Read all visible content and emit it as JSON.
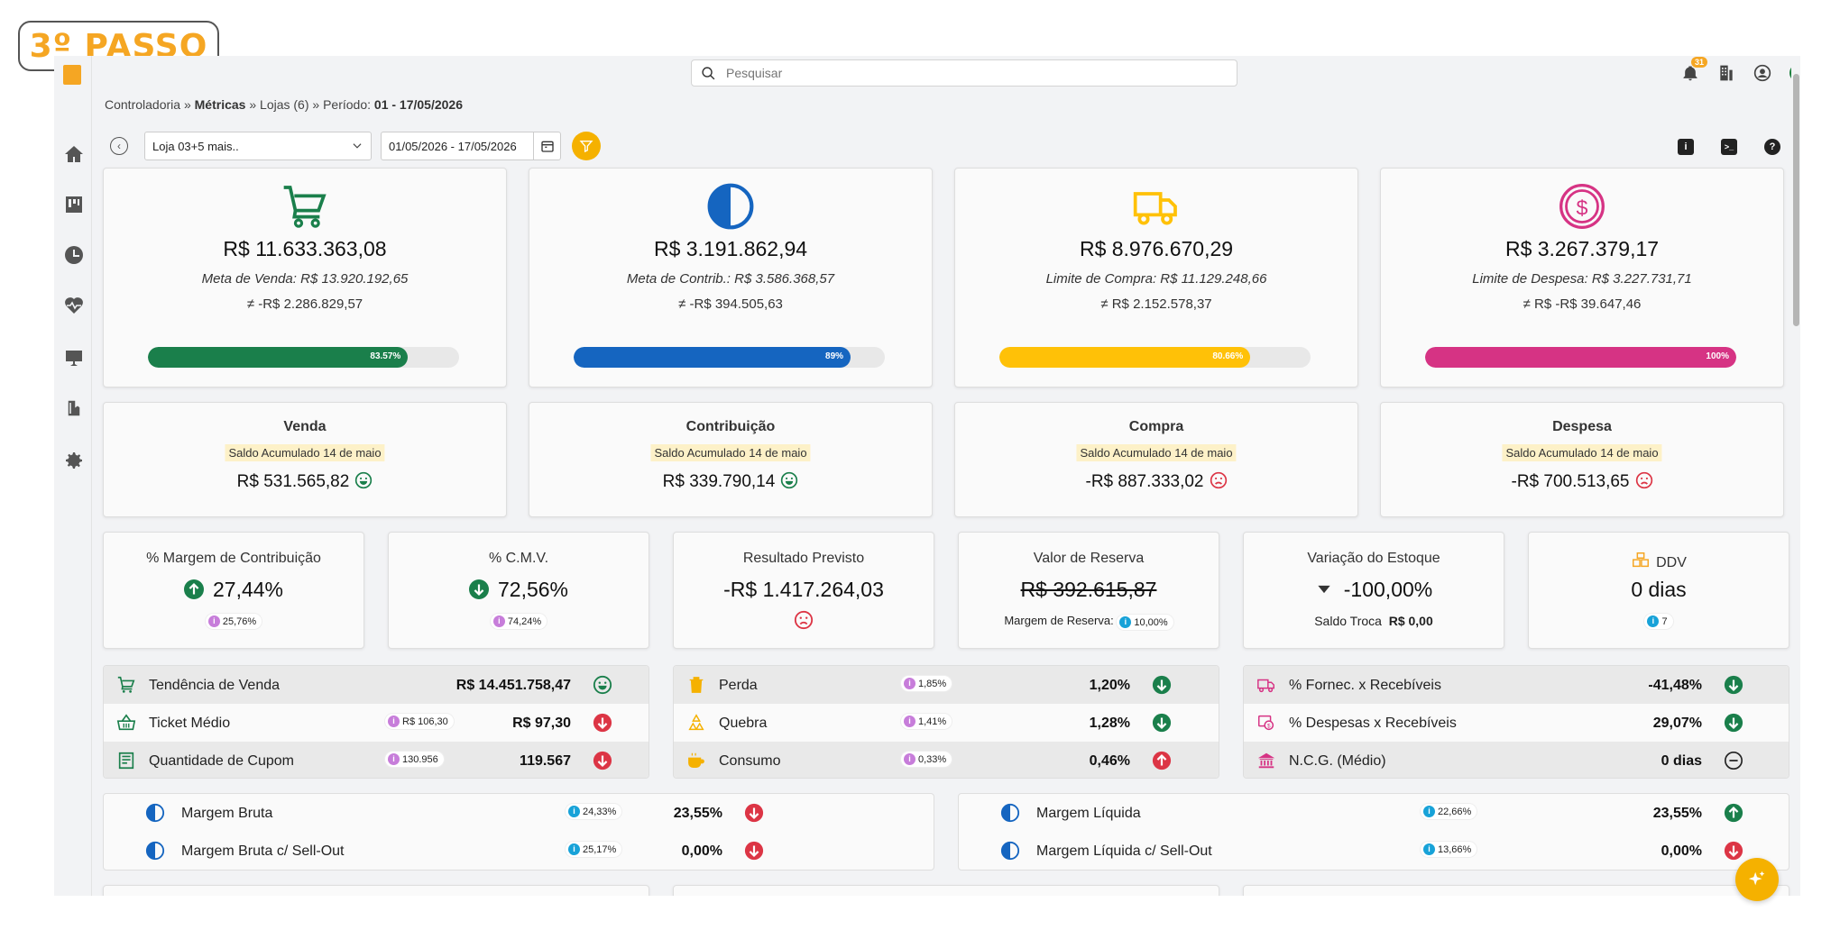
{
  "watermark": {
    "text": "3º PASSO"
  },
  "search": {
    "placeholder": "Pesquisar"
  },
  "notifications": {
    "count": "31"
  },
  "breadcrumb": {
    "part1": "Controladoria",
    "sep": " » ",
    "part2": "Métricas",
    "part3": "Lojas (6)",
    "part4": "Período: ",
    "period": "01 - 17/05/2026"
  },
  "filters": {
    "store": "Loja 03+5 mais..",
    "date_range": "01/05/2026 - 17/05/2026"
  },
  "kpis": [
    {
      "value": "R$ 11.633.363,08",
      "meta": "Meta de Venda: R$ 13.920.192,65",
      "diff": "≠ -R$ 2.286.829,57",
      "progress_pct": 83.57,
      "progress_label": "83.57%",
      "color": "#1a7f4b"
    },
    {
      "value": "R$ 3.191.862,94",
      "meta": "Meta de Contrib.: R$ 3.586.368,57",
      "diff": "≠ -R$ 394.505,63",
      "progress_pct": 89,
      "progress_label": "89%",
      "color": "#1565c0"
    },
    {
      "value": "R$ 8.976.670,29",
      "meta": "Limite de Compra: R$ 11.129.248,66",
      "diff": "≠ R$ 2.152.578,37",
      "progress_pct": 80.66,
      "progress_label": "80.66%",
      "color": "#ffc107"
    },
    {
      "value": "R$ 3.267.379,17",
      "meta": "Limite de Despesa: R$ 3.227.731,71",
      "diff": "≠ R$ -R$ 39.647,46",
      "progress_pct": 100,
      "progress_label": "100%",
      "color": "#d63384"
    }
  ],
  "saldos": [
    {
      "title": "Venda",
      "tag": "Saldo Acumulado 14 de maio",
      "value": "R$ 531.565,82",
      "mood": "happy"
    },
    {
      "title": "Contribuição",
      "tag": "Saldo Acumulado 14 de maio",
      "value": "R$ 339.790,14",
      "mood": "happy"
    },
    {
      "title": "Compra",
      "tag": "Saldo Acumulado 14 de maio",
      "value": "-R$ 887.333,02",
      "mood": "sad"
    },
    {
      "title": "Despesa",
      "tag": "Saldo Acumulado 14 de maio",
      "value": "-R$ 700.513,65",
      "mood": "sad"
    }
  ],
  "metrics": [
    {
      "title": "% Margem de Contribuição",
      "value": "27,44%",
      "chip": "25,76%"
    },
    {
      "title": "% C.M.V.",
      "value": "72,56%",
      "chip": "74,24%"
    },
    {
      "title": "Resultado Previsto",
      "value": "-R$ 1.417.264,03"
    },
    {
      "title": "Valor de Reserva",
      "value": "R$ 392.615,87",
      "sub_label": "Margem de Reserva:",
      "chip": "10,00%"
    },
    {
      "title": "Variação do Estoque",
      "value": "-100,00%",
      "sub_label": "Saldo Troca",
      "sub_value": "R$ 0,00"
    },
    {
      "title": "DDV",
      "value": "0 dias",
      "chip": "7"
    }
  ],
  "panel1": [
    {
      "label": "Tendência de Venda",
      "value": "R$ 14.451.758,47"
    },
    {
      "label": "Ticket Médio",
      "chip": "R$ 106,30",
      "value": "R$ 97,30"
    },
    {
      "label": "Quantidade de Cupom",
      "chip": "130.956",
      "value": "119.567"
    }
  ],
  "panel2": [
    {
      "label": "Perda",
      "chip": "1,85%",
      "value": "1,20%"
    },
    {
      "label": "Quebra",
      "chip": "1,41%",
      "value": "1,28%"
    },
    {
      "label": "Consumo",
      "chip": "0,33%",
      "value": "0,46%"
    }
  ],
  "panel3": [
    {
      "label": "% Fornec. x Recebíveis",
      "value": "-41,48%"
    },
    {
      "label": "% Despesas x Recebíveis",
      "value": "29,07%"
    },
    {
      "label": "N.C.G. (Médio)",
      "value": "0 dias"
    }
  ],
  "panel4": [
    {
      "label": "Margem Bruta",
      "chip": "24,33%",
      "value": "23,55%"
    },
    {
      "label": "Margem Bruta c/ Sell-Out",
      "chip": "25,17%",
      "value": "0,00%"
    }
  ],
  "panel5": [
    {
      "label": "Margem Líquida",
      "chip": "22,66%",
      "value": "23,55%"
    },
    {
      "label": "Margem Líquida c/ Sell-Out",
      "chip": "13,66%",
      "value": "0,00%"
    }
  ],
  "colors": {
    "up": "#1a7f4b",
    "down": "#dc3545",
    "info_purple": "#c77dda",
    "info_blue": "#17a2d8",
    "accent": "#f5b100"
  }
}
